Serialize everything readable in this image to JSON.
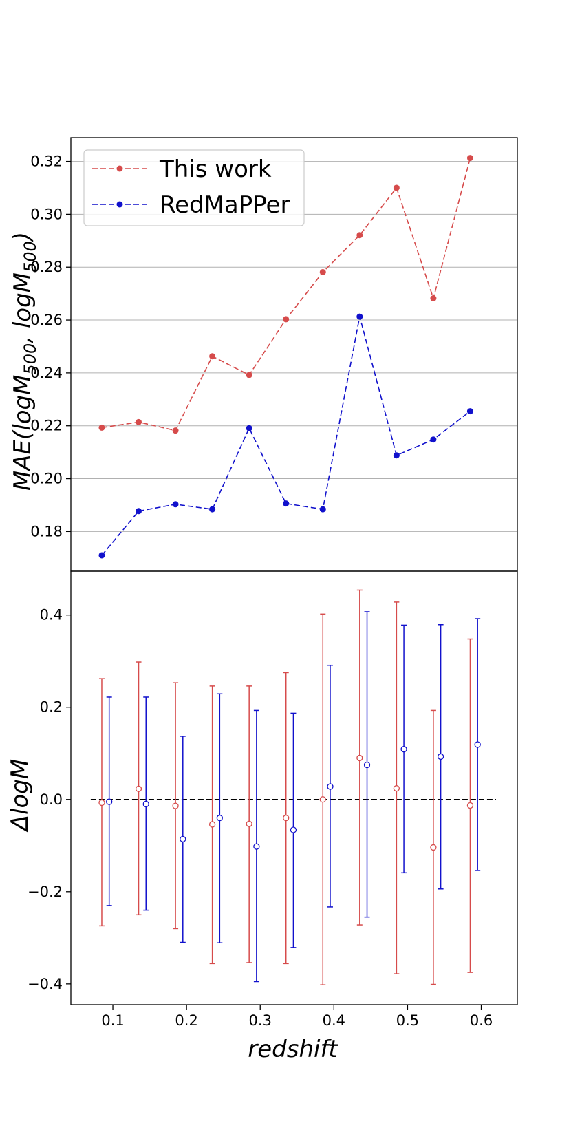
{
  "chart_data": [
    {
      "type": "line",
      "ylabel": "MAE(logM500, logM500)",
      "ylabel_parts": {
        "pre": "MAE(logM",
        "sub1": "500",
        "mid": ", logM",
        "sub2": "500",
        "post": ")"
      },
      "x": [
        0.085,
        0.135,
        0.185,
        0.235,
        0.285,
        0.335,
        0.385,
        0.435,
        0.485,
        0.535,
        0.585
      ],
      "ylim": [
        0.165,
        0.329
      ],
      "yticks": [
        0.18,
        0.2,
        0.22,
        0.24,
        0.26,
        0.28,
        0.3,
        0.32
      ],
      "ytick_labels": [
        "0.18",
        "0.20",
        "0.22",
        "0.24",
        "0.26",
        "0.28",
        "0.30",
        "0.32"
      ],
      "grid": "horizontal",
      "legend_position": "top-left",
      "series": [
        {
          "name": "This work",
          "color": "#d64b4b",
          "linestyle": "dashed",
          "marker": "filled-circle",
          "values": [
            0.2193,
            0.2214,
            0.2182,
            0.2463,
            0.2392,
            0.2603,
            0.2781,
            0.2921,
            0.31,
            0.2682,
            0.3213
          ]
        },
        {
          "name": "RedMaPPer",
          "color": "#1111cc",
          "linestyle": "dashed",
          "marker": "filled-circle",
          "values": [
            0.171,
            0.1877,
            0.1903,
            0.1884,
            0.2191,
            0.1906,
            0.1884,
            0.2613,
            0.2088,
            0.2148,
            0.2255
          ]
        }
      ]
    },
    {
      "type": "scatter",
      "xlabel": "redshift",
      "ylabel": "ΔlogM",
      "xlim": [
        0.043,
        0.649
      ],
      "ylim": [
        -0.445,
        0.495
      ],
      "xticks": [
        0.1,
        0.2,
        0.3,
        0.4,
        0.5,
        0.6
      ],
      "xtick_labels": [
        "0.1",
        "0.2",
        "0.3",
        "0.4",
        "0.5",
        "0.6"
      ],
      "yticks": [
        -0.4,
        -0.2,
        0.0,
        0.2,
        0.4
      ],
      "ytick_labels": [
        "−0.4",
        "−0.2",
        "0.0",
        "0.2",
        "0.4"
      ],
      "reference_line": {
        "y": 0.0,
        "x_range": [
          0.07,
          0.62
        ],
        "color": "#000000",
        "linestyle": "dashed"
      },
      "series": [
        {
          "color": "#d64b4b",
          "marker": "open-circle",
          "errorbars": true,
          "x": [
            0.085,
            0.135,
            0.185,
            0.235,
            0.285,
            0.335,
            0.385,
            0.435,
            0.485,
            0.535,
            0.585
          ],
          "y": [
            -0.007,
            0.023,
            -0.014,
            -0.054,
            -0.053,
            -0.04,
            0.0,
            0.09,
            0.024,
            -0.104,
            -0.013
          ],
          "y_low": [
            -0.274,
            -0.25,
            -0.28,
            -0.356,
            -0.354,
            -0.356,
            -0.402,
            -0.272,
            -0.378,
            -0.401,
            -0.375
          ],
          "y_high": [
            0.262,
            0.298,
            0.253,
            0.246,
            0.246,
            0.275,
            0.402,
            0.454,
            0.428,
            0.193,
            0.348
          ]
        },
        {
          "color": "#1111cc",
          "marker": "open-circle",
          "errorbars": true,
          "x": [
            0.095,
            0.145,
            0.195,
            0.245,
            0.295,
            0.345,
            0.395,
            0.445,
            0.495,
            0.545,
            0.595
          ],
          "y": [
            -0.005,
            -0.01,
            -0.086,
            -0.04,
            -0.102,
            -0.066,
            0.028,
            0.075,
            0.109,
            0.093,
            0.119
          ],
          "y_low": [
            -0.23,
            -0.24,
            -0.31,
            -0.311,
            -0.395,
            -0.321,
            -0.233,
            -0.255,
            -0.159,
            -0.194,
            -0.154
          ],
          "y_high": [
            0.222,
            0.222,
            0.137,
            0.229,
            0.193,
            0.187,
            0.291,
            0.407,
            0.378,
            0.379,
            0.392
          ]
        }
      ]
    }
  ]
}
